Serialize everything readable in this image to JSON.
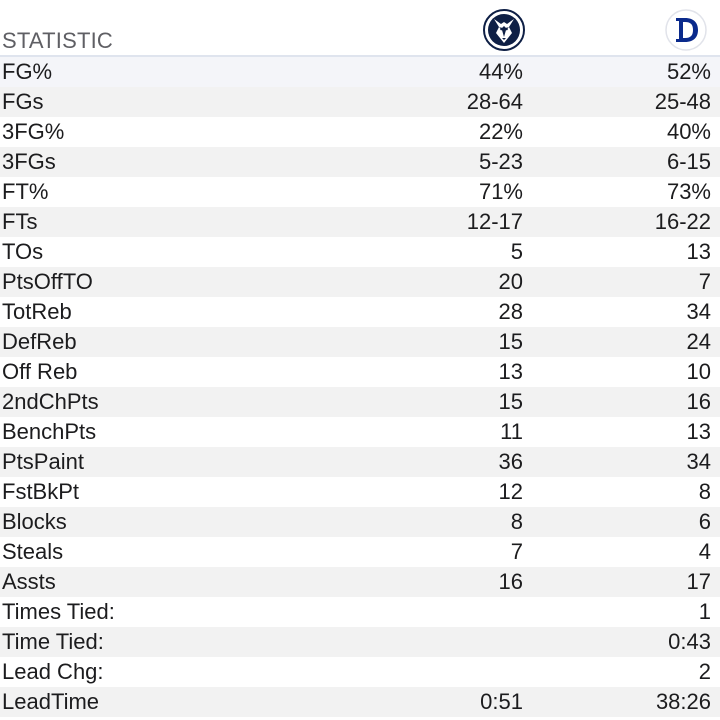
{
  "header": {
    "label": "STATISTIC",
    "away_team_icon": "husky-logo-icon",
    "home_team_icon": "duke-d-logo-icon",
    "colors": {
      "husky_navy": "#0e1f45",
      "duke_blue": "#0a2a8c"
    }
  },
  "rows": [
    {
      "label": "FG%",
      "away": "44%",
      "home": "52%"
    },
    {
      "label": "FGs",
      "away": "28-64",
      "home": "25-48"
    },
    {
      "label": "3FG%",
      "away": "22%",
      "home": "40%"
    },
    {
      "label": "3FGs",
      "away": "5-23",
      "home": "6-15"
    },
    {
      "label": "FT%",
      "away": "71%",
      "home": "73%"
    },
    {
      "label": "FTs",
      "away": "12-17",
      "home": "16-22"
    },
    {
      "label": "TOs",
      "away": "5",
      "home": "13"
    },
    {
      "label": "PtsOffTO",
      "away": "20",
      "home": "7"
    },
    {
      "label": "TotReb",
      "away": "28",
      "home": "34"
    },
    {
      "label": "DefReb",
      "away": "15",
      "home": "24"
    },
    {
      "label": "Off Reb",
      "away": "13",
      "home": "10"
    },
    {
      "label": "2ndChPts",
      "away": "15",
      "home": "16"
    },
    {
      "label": "BenchPts",
      "away": "11",
      "home": "13"
    },
    {
      "label": "PtsPaint",
      "away": "36",
      "home": "34"
    },
    {
      "label": "FstBkPt",
      "away": "12",
      "home": "8"
    },
    {
      "label": "Blocks",
      "away": "8",
      "home": "6"
    },
    {
      "label": "Steals",
      "away": "7",
      "home": "4"
    },
    {
      "label": "Assts",
      "away": "16",
      "home": "17"
    },
    {
      "label": "Times Tied:",
      "away": "",
      "home": "1"
    },
    {
      "label": "Time Tied:",
      "away": "",
      "home": "0:43"
    },
    {
      "label": "Lead Chg:",
      "away": "",
      "home": "2"
    },
    {
      "label": "LeadTime",
      "away": "0:51",
      "home": "38:26"
    }
  ]
}
